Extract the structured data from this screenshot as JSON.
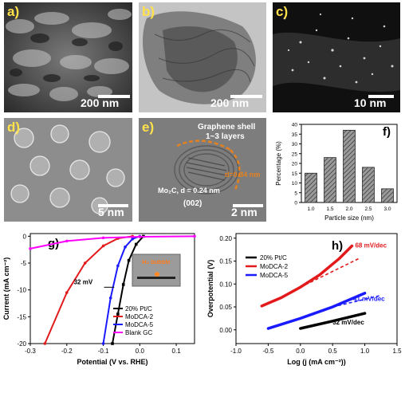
{
  "panels": {
    "a": {
      "label": "a)",
      "scale": "200 nm"
    },
    "b": {
      "label": "b)",
      "scale": "200 nm"
    },
    "c": {
      "label": "c)",
      "scale": "10 nm"
    },
    "d": {
      "label": "d)",
      "scale": "5 nm"
    },
    "e": {
      "label": "e)",
      "scale": "2 nm",
      "annotations": {
        "shell": "Graphene shell",
        "layers": "1~3 layers",
        "d1": "d=0.34 nm",
        "d2": "Mo₂C, d = 0.24 nm",
        "plane": "(002)"
      }
    },
    "g": {
      "label": "g)",
      "inset": "H₂ bubble",
      "annotation": "32 mV"
    },
    "h": {
      "label": "h)"
    }
  },
  "chart_data": [
    {
      "id": "f",
      "type": "bar",
      "title": "f)",
      "xlabel": "Particle size (nm)",
      "ylabel": "Percentage (%)",
      "categories": [
        "1.0",
        "1.5",
        "2.0",
        "2.5",
        "3.0"
      ],
      "values": [
        15,
        23,
        37,
        18,
        7
      ],
      "ylim": [
        0,
        40
      ],
      "yticks": [
        "0",
        "5",
        "10",
        "15",
        "20",
        "25",
        "30",
        "35",
        "40"
      ],
      "style": "hatched grey bars"
    },
    {
      "id": "g",
      "type": "line",
      "title": "g)",
      "xlabel": "Potential (V vs. RHE)",
      "ylabel": "Current (mA cm⁻²)",
      "xlim": [
        -0.3,
        0.15
      ],
      "ylim": [
        -20,
        0.5
      ],
      "xticks": [
        "-0.3",
        "-0.2",
        "-0.1",
        "0.0",
        "0.1"
      ],
      "yticks": [
        "0",
        "-5",
        "-10",
        "-15",
        "-20"
      ],
      "legend_position": "bottom-right",
      "series": [
        {
          "name": "20% Pt/C",
          "color": "#000000",
          "marker": "square",
          "x": [
            0.01,
            -0.01,
            -0.03,
            -0.045,
            -0.06,
            -0.075
          ],
          "y": [
            0,
            -1.5,
            -4.5,
            -9,
            -14.5,
            -20
          ]
        },
        {
          "name": "MoDCA-2",
          "color": "#e31a1c",
          "marker": "circle",
          "x": [
            -0.02,
            -0.06,
            -0.1,
            -0.15,
            -0.2,
            -0.26
          ],
          "y": [
            0,
            -0.4,
            -1.8,
            -5,
            -10.5,
            -20
          ]
        },
        {
          "name": "MoDCA-5",
          "color": "#1a1aff",
          "marker": "triangle",
          "x": [
            0,
            -0.02,
            -0.04,
            -0.06,
            -0.08,
            -0.1
          ],
          "y": [
            0,
            -0.5,
            -2,
            -5.5,
            -11.5,
            -20
          ]
        },
        {
          "name": "Blank GC",
          "color": "#ff00ff",
          "marker": "triangle-down",
          "x": [
            0.15,
            0.0,
            -0.1,
            -0.2,
            -0.3
          ],
          "y": [
            0,
            -0.1,
            -0.3,
            -0.9,
            -2.3
          ]
        }
      ]
    },
    {
      "id": "h",
      "type": "line",
      "title": "h)",
      "xlabel": "Log (j (mA cm⁻²))",
      "ylabel": "Overpotential (V)",
      "xlim": [
        -1.0,
        1.5
      ],
      "ylim": [
        -0.03,
        0.21
      ],
      "xticks": [
        "-1.0",
        "-0.5",
        "0.0",
        "0.5",
        "1.0",
        "1.5"
      ],
      "yticks": [
        "0.00",
        "0.05",
        "0.10",
        "0.15",
        "0.20"
      ],
      "legend_position": "top-left",
      "series": [
        {
          "name": "20% Pt/C",
          "color": "#000000",
          "x": [
            0.0,
            0.5,
            1.0
          ],
          "y": [
            0.003,
            0.019,
            0.036
          ]
        },
        {
          "name": "MoDCA-2",
          "color": "#e31a1c",
          "x": [
            -0.6,
            -0.3,
            0.0,
            0.3,
            0.6,
            0.8
          ],
          "y": [
            0.052,
            0.07,
            0.093,
            0.12,
            0.155,
            0.183
          ]
        },
        {
          "name": "MoDCA-5",
          "color": "#1a1aff",
          "x": [
            -0.5,
            0.0,
            0.5,
            1.0
          ],
          "y": [
            0.003,
            0.025,
            0.05,
            0.08
          ]
        }
      ],
      "fits": [
        {
          "color": "#e31a1c",
          "x": [
            0.0,
            0.9
          ],
          "y": [
            0.093,
            0.155
          ]
        },
        {
          "color": "#1a1aff",
          "x": [
            0.5,
            1.25
          ],
          "y": [
            0.05,
            0.075
          ]
        }
      ],
      "annotations": [
        "68 mV/dec",
        "41 mV/dec",
        "32 mV/dec"
      ]
    }
  ]
}
